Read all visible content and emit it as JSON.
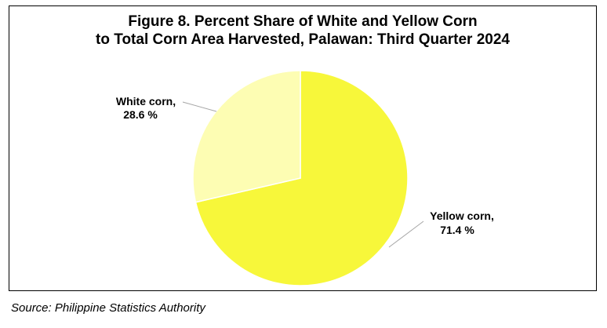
{
  "chart_data": {
    "type": "pie",
    "title": [
      "Figure 8. Percent Share of White and Yellow Corn",
      "to Total Corn Area Harvested, Palawan: Third Quarter 2024"
    ],
    "slices": [
      {
        "name": "Yellow corn,",
        "label": "71.4 %",
        "value": 71.4,
        "color": "#f7f73a"
      },
      {
        "name": "White corn,",
        "label": "28.6 %",
        "value": 28.6,
        "color": "#fdfdb3"
      }
    ],
    "start": "12 o'clock",
    "direction": "clockwise"
  },
  "source": "Source: Philippine Statistics Authority"
}
